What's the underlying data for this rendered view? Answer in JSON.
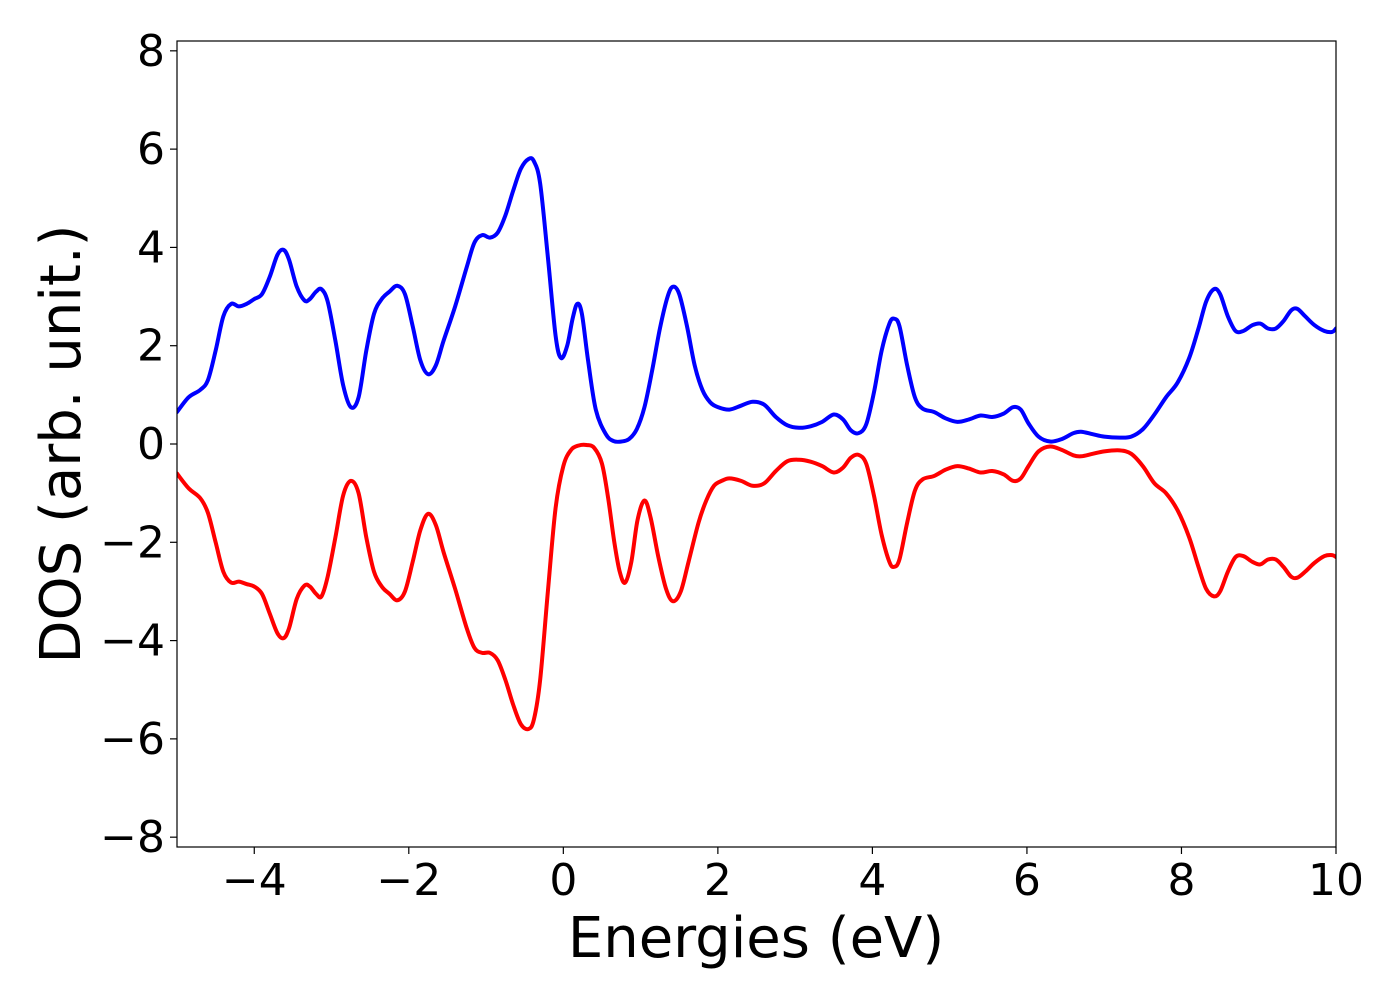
{
  "chart_data": {
    "type": "line",
    "title": "",
    "xlabel": "Energies (eV)",
    "ylabel": "DOS (arb. unit.)",
    "xlim": [
      -5,
      10
    ],
    "ylim": [
      -8.2,
      8.2
    ],
    "xticks": [
      -4,
      -2,
      0,
      2,
      4,
      6,
      8,
      10
    ],
    "xtick_labels": [
      "−4",
      "−2",
      "0",
      "2",
      "4",
      "6",
      "8",
      "10"
    ],
    "yticks": [
      -8,
      -6,
      -4,
      -2,
      0,
      2,
      4,
      6,
      8
    ],
    "ytick_labels": [
      "−8",
      "−6",
      "−4",
      "−2",
      "0",
      "2",
      "4",
      "6",
      "8"
    ],
    "grid": false,
    "legend": "none",
    "series": [
      {
        "color": "#0000ff",
        "points": [
          [
            -5.0,
            0.65
          ],
          [
            -4.85,
            0.95
          ],
          [
            -4.7,
            1.1
          ],
          [
            -4.6,
            1.3
          ],
          [
            -4.5,
            1.9
          ],
          [
            -4.4,
            2.6
          ],
          [
            -4.3,
            2.85
          ],
          [
            -4.2,
            2.8
          ],
          [
            -4.1,
            2.85
          ],
          [
            -4.0,
            2.95
          ],
          [
            -3.9,
            3.05
          ],
          [
            -3.8,
            3.4
          ],
          [
            -3.7,
            3.85
          ],
          [
            -3.62,
            3.95
          ],
          [
            -3.55,
            3.75
          ],
          [
            -3.45,
            3.2
          ],
          [
            -3.35,
            2.92
          ],
          [
            -3.28,
            2.95
          ],
          [
            -3.2,
            3.1
          ],
          [
            -3.13,
            3.15
          ],
          [
            -3.05,
            2.9
          ],
          [
            -2.95,
            2.1
          ],
          [
            -2.85,
            1.2
          ],
          [
            -2.75,
            0.75
          ],
          [
            -2.65,
            0.95
          ],
          [
            -2.55,
            1.9
          ],
          [
            -2.45,
            2.65
          ],
          [
            -2.35,
            2.95
          ],
          [
            -2.25,
            3.1
          ],
          [
            -2.15,
            3.22
          ],
          [
            -2.05,
            3.05
          ],
          [
            -1.95,
            2.4
          ],
          [
            -1.85,
            1.7
          ],
          [
            -1.75,
            1.42
          ],
          [
            -1.65,
            1.6
          ],
          [
            -1.55,
            2.1
          ],
          [
            -1.4,
            2.8
          ],
          [
            -1.25,
            3.6
          ],
          [
            -1.15,
            4.1
          ],
          [
            -1.05,
            4.25
          ],
          [
            -0.95,
            4.2
          ],
          [
            -0.85,
            4.3
          ],
          [
            -0.75,
            4.65
          ],
          [
            -0.65,
            5.15
          ],
          [
            -0.55,
            5.6
          ],
          [
            -0.45,
            5.8
          ],
          [
            -0.38,
            5.75
          ],
          [
            -0.3,
            5.3
          ],
          [
            -0.2,
            3.8
          ],
          [
            -0.1,
            2.2
          ],
          [
            -0.03,
            1.75
          ],
          [
            0.05,
            2.0
          ],
          [
            0.12,
            2.55
          ],
          [
            0.18,
            2.85
          ],
          [
            0.24,
            2.65
          ],
          [
            0.32,
            1.7
          ],
          [
            0.42,
            0.7
          ],
          [
            0.55,
            0.2
          ],
          [
            0.65,
            0.06
          ],
          [
            0.75,
            0.05
          ],
          [
            0.85,
            0.1
          ],
          [
            0.95,
            0.3
          ],
          [
            1.05,
            0.75
          ],
          [
            1.15,
            1.5
          ],
          [
            1.25,
            2.35
          ],
          [
            1.35,
            3.0
          ],
          [
            1.42,
            3.2
          ],
          [
            1.5,
            3.05
          ],
          [
            1.6,
            2.4
          ],
          [
            1.7,
            1.6
          ],
          [
            1.8,
            1.1
          ],
          [
            1.9,
            0.85
          ],
          [
            2.0,
            0.75
          ],
          [
            2.15,
            0.7
          ],
          [
            2.3,
            0.78
          ],
          [
            2.45,
            0.86
          ],
          [
            2.6,
            0.8
          ],
          [
            2.75,
            0.55
          ],
          [
            2.9,
            0.38
          ],
          [
            3.05,
            0.33
          ],
          [
            3.2,
            0.36
          ],
          [
            3.35,
            0.45
          ],
          [
            3.5,
            0.6
          ],
          [
            3.62,
            0.5
          ],
          [
            3.72,
            0.28
          ],
          [
            3.82,
            0.22
          ],
          [
            3.92,
            0.4
          ],
          [
            4.02,
            1.05
          ],
          [
            4.12,
            1.9
          ],
          [
            4.22,
            2.45
          ],
          [
            4.28,
            2.55
          ],
          [
            4.35,
            2.4
          ],
          [
            4.45,
            1.6
          ],
          [
            4.55,
            0.95
          ],
          [
            4.65,
            0.72
          ],
          [
            4.8,
            0.65
          ],
          [
            4.95,
            0.52
          ],
          [
            5.1,
            0.45
          ],
          [
            5.25,
            0.5
          ],
          [
            5.4,
            0.58
          ],
          [
            5.55,
            0.55
          ],
          [
            5.7,
            0.62
          ],
          [
            5.82,
            0.75
          ],
          [
            5.92,
            0.7
          ],
          [
            6.02,
            0.42
          ],
          [
            6.15,
            0.15
          ],
          [
            6.3,
            0.05
          ],
          [
            6.45,
            0.1
          ],
          [
            6.6,
            0.22
          ],
          [
            6.7,
            0.25
          ],
          [
            6.85,
            0.2
          ],
          [
            7.0,
            0.15
          ],
          [
            7.2,
            0.13
          ],
          [
            7.35,
            0.15
          ],
          [
            7.5,
            0.3
          ],
          [
            7.65,
            0.6
          ],
          [
            7.8,
            0.95
          ],
          [
            7.95,
            1.25
          ],
          [
            8.1,
            1.75
          ],
          [
            8.22,
            2.35
          ],
          [
            8.32,
            2.9
          ],
          [
            8.42,
            3.15
          ],
          [
            8.5,
            3.05
          ],
          [
            8.6,
            2.6
          ],
          [
            8.7,
            2.3
          ],
          [
            8.8,
            2.3
          ],
          [
            8.92,
            2.42
          ],
          [
            9.02,
            2.45
          ],
          [
            9.12,
            2.35
          ],
          [
            9.22,
            2.35
          ],
          [
            9.32,
            2.5
          ],
          [
            9.42,
            2.72
          ],
          [
            9.5,
            2.75
          ],
          [
            9.6,
            2.6
          ],
          [
            9.72,
            2.42
          ],
          [
            9.85,
            2.3
          ],
          [
            9.95,
            2.28
          ],
          [
            10.0,
            2.35
          ]
        ]
      },
      {
        "color": "#ff0000",
        "points": [
          [
            -5.0,
            -0.6
          ],
          [
            -4.85,
            -0.9
          ],
          [
            -4.7,
            -1.1
          ],
          [
            -4.6,
            -1.4
          ],
          [
            -4.5,
            -2.0
          ],
          [
            -4.4,
            -2.6
          ],
          [
            -4.3,
            -2.82
          ],
          [
            -4.2,
            -2.8
          ],
          [
            -4.1,
            -2.85
          ],
          [
            -4.0,
            -2.9
          ],
          [
            -3.9,
            -3.05
          ],
          [
            -3.8,
            -3.45
          ],
          [
            -3.7,
            -3.85
          ],
          [
            -3.62,
            -3.95
          ],
          [
            -3.55,
            -3.75
          ],
          [
            -3.45,
            -3.15
          ],
          [
            -3.35,
            -2.88
          ],
          [
            -3.28,
            -2.9
          ],
          [
            -3.2,
            -3.05
          ],
          [
            -3.13,
            -3.1
          ],
          [
            -3.05,
            -2.7
          ],
          [
            -2.95,
            -1.9
          ],
          [
            -2.85,
            -1.05
          ],
          [
            -2.75,
            -0.75
          ],
          [
            -2.65,
            -1.0
          ],
          [
            -2.55,
            -1.9
          ],
          [
            -2.45,
            -2.6
          ],
          [
            -2.35,
            -2.9
          ],
          [
            -2.25,
            -3.05
          ],
          [
            -2.15,
            -3.18
          ],
          [
            -2.05,
            -3.0
          ],
          [
            -1.95,
            -2.4
          ],
          [
            -1.85,
            -1.75
          ],
          [
            -1.75,
            -1.42
          ],
          [
            -1.65,
            -1.65
          ],
          [
            -1.55,
            -2.2
          ],
          [
            -1.4,
            -2.95
          ],
          [
            -1.25,
            -3.75
          ],
          [
            -1.15,
            -4.15
          ],
          [
            -1.05,
            -4.25
          ],
          [
            -0.95,
            -4.25
          ],
          [
            -0.85,
            -4.4
          ],
          [
            -0.75,
            -4.8
          ],
          [
            -0.65,
            -5.3
          ],
          [
            -0.55,
            -5.7
          ],
          [
            -0.45,
            -5.8
          ],
          [
            -0.38,
            -5.6
          ],
          [
            -0.3,
            -4.8
          ],
          [
            -0.2,
            -3.0
          ],
          [
            -0.1,
            -1.3
          ],
          [
            0.0,
            -0.45
          ],
          [
            0.1,
            -0.12
          ],
          [
            0.2,
            -0.03
          ],
          [
            0.3,
            -0.02
          ],
          [
            0.4,
            -0.08
          ],
          [
            0.5,
            -0.4
          ],
          [
            0.58,
            -1.1
          ],
          [
            0.66,
            -2.0
          ],
          [
            0.73,
            -2.6
          ],
          [
            0.8,
            -2.82
          ],
          [
            0.88,
            -2.4
          ],
          [
            0.96,
            -1.55
          ],
          [
            1.05,
            -1.15
          ],
          [
            1.13,
            -1.5
          ],
          [
            1.23,
            -2.3
          ],
          [
            1.33,
            -2.95
          ],
          [
            1.42,
            -3.2
          ],
          [
            1.52,
            -3.0
          ],
          [
            1.62,
            -2.4
          ],
          [
            1.75,
            -1.6
          ],
          [
            1.85,
            -1.15
          ],
          [
            1.95,
            -0.85
          ],
          [
            2.05,
            -0.75
          ],
          [
            2.15,
            -0.7
          ],
          [
            2.3,
            -0.75
          ],
          [
            2.45,
            -0.85
          ],
          [
            2.6,
            -0.8
          ],
          [
            2.75,
            -0.55
          ],
          [
            2.9,
            -0.35
          ],
          [
            3.05,
            -0.32
          ],
          [
            3.2,
            -0.36
          ],
          [
            3.35,
            -0.45
          ],
          [
            3.5,
            -0.58
          ],
          [
            3.62,
            -0.48
          ],
          [
            3.72,
            -0.28
          ],
          [
            3.82,
            -0.22
          ],
          [
            3.92,
            -0.4
          ],
          [
            4.02,
            -1.05
          ],
          [
            4.12,
            -1.85
          ],
          [
            4.22,
            -2.4
          ],
          [
            4.28,
            -2.5
          ],
          [
            4.35,
            -2.35
          ],
          [
            4.45,
            -1.6
          ],
          [
            4.55,
            -0.95
          ],
          [
            4.65,
            -0.72
          ],
          [
            4.8,
            -0.65
          ],
          [
            4.95,
            -0.52
          ],
          [
            5.1,
            -0.45
          ],
          [
            5.25,
            -0.5
          ],
          [
            5.4,
            -0.58
          ],
          [
            5.55,
            -0.55
          ],
          [
            5.7,
            -0.62
          ],
          [
            5.82,
            -0.75
          ],
          [
            5.92,
            -0.7
          ],
          [
            6.02,
            -0.45
          ],
          [
            6.15,
            -0.15
          ],
          [
            6.3,
            -0.05
          ],
          [
            6.45,
            -0.12
          ],
          [
            6.6,
            -0.23
          ],
          [
            6.7,
            -0.25
          ],
          [
            6.85,
            -0.2
          ],
          [
            7.0,
            -0.15
          ],
          [
            7.2,
            -0.13
          ],
          [
            7.35,
            -0.2
          ],
          [
            7.5,
            -0.45
          ],
          [
            7.65,
            -0.8
          ],
          [
            7.8,
            -1.0
          ],
          [
            7.95,
            -1.35
          ],
          [
            8.1,
            -1.9
          ],
          [
            8.22,
            -2.5
          ],
          [
            8.32,
            -2.95
          ],
          [
            8.42,
            -3.1
          ],
          [
            8.5,
            -3.0
          ],
          [
            8.6,
            -2.6
          ],
          [
            8.7,
            -2.3
          ],
          [
            8.8,
            -2.28
          ],
          [
            8.92,
            -2.4
          ],
          [
            9.02,
            -2.45
          ],
          [
            9.12,
            -2.35
          ],
          [
            9.22,
            -2.35
          ],
          [
            9.32,
            -2.5
          ],
          [
            9.42,
            -2.7
          ],
          [
            9.5,
            -2.72
          ],
          [
            9.6,
            -2.6
          ],
          [
            9.72,
            -2.42
          ],
          [
            9.85,
            -2.28
          ],
          [
            9.95,
            -2.26
          ],
          [
            10.0,
            -2.3
          ]
        ]
      }
    ]
  }
}
